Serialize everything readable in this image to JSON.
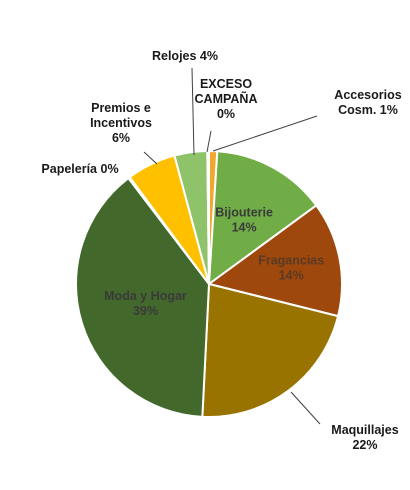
{
  "chart_data": {
    "type": "pie",
    "title": "",
    "start": "12 o'clock, clockwise",
    "slices": [
      {
        "label": "Accesorios Cosm.",
        "display": [
          "Accesorios",
          "Cosm. 1%"
        ],
        "value": 1,
        "color": "#f0a830",
        "placement": "outside"
      },
      {
        "label": "Bijouterie",
        "display": [
          "Bijouterie",
          "14%"
        ],
        "value": 14,
        "color": "#70ad47",
        "placement": "inside",
        "text_color": "#3a3a3a"
      },
      {
        "label": "Fragancias",
        "display": [
          "Fragancias",
          "14%"
        ],
        "value": 14,
        "color": "#9e480e",
        "placement": "inside",
        "text_color": "#5a3a22"
      },
      {
        "label": "Maquillajes",
        "display": [
          "Maquillajes",
          "22%"
        ],
        "value": 22,
        "color": "#997300",
        "placement": "outside"
      },
      {
        "label": "Moda y Hogar",
        "display": [
          "Moda y Hogar",
          "39%"
        ],
        "value": 39,
        "color": "#43682b",
        "placement": "inside",
        "text_color": "#3a3a3a"
      },
      {
        "label": "Papelería",
        "display": [
          "Papelería 0%"
        ],
        "value": 0.2,
        "color": "#b8d078",
        "placement": "outside"
      },
      {
        "label": "Premios e Incentivos",
        "display": [
          "Premios e",
          "Incentivos",
          "6%"
        ],
        "value": 6,
        "color": "#ffc000",
        "placement": "outside"
      },
      {
        "label": "Relojes",
        "display": [
          "Relojes 4%"
        ],
        "value": 4,
        "color": "#8fc36a",
        "placement": "outside"
      },
      {
        "label": "EXCESO CAMPAÑA",
        "display": [
          "EXCESO",
          "CAMPAÑA",
          "0%"
        ],
        "value": 0.2,
        "color": "#c8a000",
        "placement": "outside"
      }
    ]
  }
}
